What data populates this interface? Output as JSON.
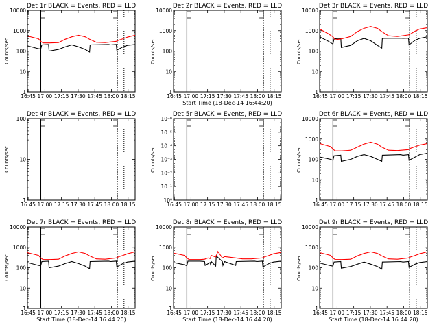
{
  "common": {
    "xlabel": "Start Time (18-Dec-14 16:44:20)",
    "ylabel": "Counts/sec",
    "x_ticks": [
      "16:45",
      "17:00",
      "17:15",
      "17:30",
      "17:45",
      "18:00",
      "18:15"
    ],
    "x_tick_minutes": [
      0.67,
      15.67,
      30.67,
      45.67,
      60.67,
      75.67,
      90.67
    ],
    "xlim_minutes": [
      0,
      97
    ],
    "series_colors": {
      "events": "#000000",
      "lld": "#ff0000"
    },
    "vertical_markers": {
      "solid": [
        12
      ],
      "dashed": [
        81
      ],
      "dotted": [
        87
      ]
    }
  },
  "chart_data": [
    {
      "type": "line",
      "title": "Det 1r BLACK = Events, RED = LLD",
      "ylim": [
        1,
        10000
      ],
      "yscale": "log",
      "yticks": [
        1,
        10,
        100,
        1000,
        10000
      ],
      "yticklabels": [
        "1",
        "10",
        "100",
        "1000",
        "10000"
      ],
      "has_data": true,
      "show_xlabel": false,
      "series": [
        {
          "key": "events",
          "x": [
            0,
            10,
            12,
            13,
            19,
            19.5,
            28,
            34,
            40,
            46,
            52,
            56,
            56.5,
            73,
            75,
            80,
            80.5,
            86,
            90,
            97
          ],
          "y": [
            180,
            130,
            125,
            200,
            210,
            100,
            120,
            160,
            200,
            160,
            120,
            90,
            200,
            210,
            200,
            210,
            110,
            160,
            190,
            210
          ]
        },
        {
          "key": "lld",
          "x": [
            0,
            10,
            12,
            14,
            20,
            28,
            34,
            40,
            46,
            52,
            56,
            62,
            70,
            80,
            82,
            86,
            90,
            97
          ],
          "y": [
            550,
            400,
            300,
            250,
            250,
            260,
            380,
            500,
            600,
            500,
            380,
            270,
            260,
            300,
            340,
            400,
            480,
            600
          ]
        }
      ]
    },
    {
      "type": "line",
      "title": "Det 2r BLACK = Events, RED = LLD",
      "ylim": [
        1,
        10000
      ],
      "yscale": "log",
      "yticks": [
        1,
        10,
        100,
        1000,
        10000
      ],
      "yticklabels": [
        "1",
        "10",
        "100",
        "1000",
        "10000"
      ],
      "has_data": false,
      "show_xlabel": true,
      "series": []
    },
    {
      "type": "line",
      "title": "Det 3r BLACK = Events, RED = LLD",
      "ylim": [
        1,
        10000
      ],
      "yscale": "log",
      "yticks": [
        1,
        10,
        100,
        1000,
        10000
      ],
      "yticklabels": [
        "1",
        "10",
        "100",
        "1000",
        "10000"
      ],
      "has_data": true,
      "show_xlabel": false,
      "series": [
        {
          "key": "events",
          "x": [
            0,
            8,
            12,
            13,
            19,
            19.5,
            28,
            34,
            40,
            46,
            52,
            56,
            56.5,
            73,
            75,
            80,
            80.5,
            86,
            90,
            97
          ],
          "y": [
            500,
            300,
            220,
            400,
            420,
            150,
            190,
            320,
            420,
            320,
            190,
            140,
            420,
            430,
            420,
            430,
            200,
            340,
            420,
            500
          ]
        },
        {
          "key": "lld",
          "x": [
            0,
            8,
            12,
            14,
            20,
            28,
            34,
            40,
            46,
            52,
            56,
            62,
            70,
            80,
            82,
            86,
            90,
            97
          ],
          "y": [
            1200,
            700,
            500,
            360,
            400,
            520,
            900,
            1300,
            1600,
            1300,
            900,
            560,
            520,
            620,
            700,
            950,
            1200,
            1400
          ]
        }
      ]
    },
    {
      "type": "line",
      "title": "Det 4r BLACK = Events, RED = LLD",
      "ylim": [
        1,
        100
      ],
      "yscale": "log",
      "yticks": [
        1,
        10,
        100
      ],
      "yticklabels": [
        "1",
        "10",
        "100"
      ],
      "has_data": false,
      "show_xlabel": false,
      "series": []
    },
    {
      "type": "line",
      "title": "Det 5r BLACK = Events, RED = LLD",
      "ylim": [
        1,
        1e-06
      ],
      "yscale": "log",
      "yticks": [
        1,
        0.1,
        0.01,
        0.001,
        0.0001,
        1e-05,
        1e-06
      ],
      "yticklabels": [
        "10⁰",
        "10⁻¹",
        "10⁻²",
        "10⁻³",
        "10⁻⁴",
        "10⁻⁵",
        "10⁻⁶"
      ],
      "has_data": false,
      "show_xlabel": false,
      "series": []
    },
    {
      "type": "line",
      "title": "Det 6r BLACK = Events, RED = LLD",
      "ylim": [
        1,
        10000
      ],
      "yscale": "log",
      "yticks": [
        1,
        10,
        100,
        1000,
        10000
      ],
      "yticklabels": [
        "1",
        "10",
        "100",
        "1000",
        "10000"
      ],
      "has_data": true,
      "show_xlabel": false,
      "series": [
        {
          "key": "events",
          "x": [
            0,
            10,
            12,
            13,
            19,
            19.5,
            28,
            34,
            40,
            46,
            52,
            56,
            56.5,
            73,
            75,
            80,
            80.5,
            86,
            90,
            97
          ],
          "y": [
            130,
            100,
            90,
            150,
            160,
            80,
            100,
            140,
            170,
            140,
            100,
            80,
            160,
            170,
            160,
            170,
            90,
            130,
            170,
            200
          ]
        },
        {
          "key": "lld",
          "x": [
            0,
            10,
            12,
            14,
            20,
            28,
            34,
            40,
            46,
            52,
            56,
            62,
            70,
            80,
            82,
            86,
            90,
            97
          ],
          "y": [
            600,
            420,
            320,
            260,
            260,
            280,
            400,
            560,
            700,
            560,
            400,
            280,
            270,
            300,
            350,
            420,
            500,
            600
          ]
        }
      ]
    },
    {
      "type": "line",
      "title": "Det 7r BLACK = Events, RED = LLD",
      "ylim": [
        1,
        10000
      ],
      "yscale": "log",
      "yticks": [
        1,
        10,
        100,
        1000,
        10000
      ],
      "yticklabels": [
        "1",
        "10",
        "100",
        "1000",
        "10000"
      ],
      "has_data": true,
      "show_xlabel": true,
      "series": [
        {
          "key": "events",
          "x": [
            0,
            10,
            12,
            13,
            19,
            19.5,
            28,
            34,
            40,
            46,
            52,
            56,
            56.5,
            73,
            75,
            80,
            80.5,
            86,
            90,
            97
          ],
          "y": [
            180,
            130,
            125,
            200,
            210,
            100,
            120,
            160,
            200,
            160,
            120,
            90,
            200,
            210,
            200,
            210,
            110,
            160,
            190,
            210
          ]
        },
        {
          "key": "lld",
          "x": [
            0,
            10,
            12,
            14,
            20,
            28,
            34,
            40,
            46,
            52,
            56,
            62,
            70,
            80,
            82,
            86,
            90,
            97
          ],
          "y": [
            550,
            400,
            300,
            250,
            250,
            260,
            380,
            500,
            600,
            500,
            380,
            270,
            260,
            300,
            340,
            400,
            480,
            600
          ]
        }
      ]
    },
    {
      "type": "line",
      "title": "Det 8r BLACK = Events, RED = LLD",
      "ylim": [
        1,
        10000
      ],
      "yscale": "log",
      "yticks": [
        1,
        10,
        100,
        1000,
        10000
      ],
      "yticklabels": [
        "1",
        "10",
        "100",
        "1000",
        "10000"
      ],
      "has_data": true,
      "show_xlabel": true,
      "series": [
        {
          "key": "events",
          "x": [
            0,
            10,
            12,
            13,
            24,
            28,
            28.5,
            33,
            33.5,
            34,
            38,
            38.5,
            44,
            44.5,
            46,
            56,
            56.5,
            73,
            75,
            80,
            80.5,
            86,
            90,
            97
          ],
          "y": [
            180,
            140,
            125,
            210,
            210,
            200,
            130,
            180,
            130,
            200,
            120,
            380,
            200,
            130,
            200,
            130,
            200,
            210,
            200,
            210,
            110,
            160,
            190,
            210
          ]
        },
        {
          "key": "lld",
          "x": [
            0,
            10,
            12,
            14,
            24,
            28,
            31,
            33,
            34,
            38,
            40,
            44,
            46,
            56,
            62,
            70,
            80,
            82,
            86,
            90,
            97
          ],
          "y": [
            520,
            400,
            300,
            250,
            250,
            260,
            300,
            280,
            400,
            330,
            620,
            300,
            350,
            300,
            270,
            270,
            300,
            340,
            400,
            480,
            560
          ]
        }
      ]
    },
    {
      "type": "line",
      "title": "Det 9r BLACK = Events, RED = LLD",
      "ylim": [
        1,
        10000
      ],
      "yscale": "log",
      "yticks": [
        1,
        10,
        100,
        1000,
        10000
      ],
      "yticklabels": [
        "1",
        "10",
        "100",
        "1000",
        "10000"
      ],
      "has_data": true,
      "show_xlabel": true,
      "series": [
        {
          "key": "events",
          "x": [
            0,
            10,
            12,
            13,
            19,
            19.5,
            28,
            34,
            40,
            46,
            52,
            56,
            56.5,
            73,
            75,
            80,
            80.5,
            86,
            90,
            97
          ],
          "y": [
            170,
            125,
            120,
            190,
            200,
            95,
            115,
            150,
            190,
            150,
            115,
            85,
            190,
            200,
            190,
            200,
            105,
            150,
            180,
            200
          ]
        },
        {
          "key": "lld",
          "x": [
            0,
            10,
            12,
            14,
            20,
            28,
            34,
            40,
            46,
            52,
            56,
            62,
            70,
            80,
            82,
            86,
            90,
            97
          ],
          "y": [
            550,
            400,
            300,
            250,
            250,
            260,
            380,
            500,
            600,
            500,
            380,
            270,
            260,
            300,
            340,
            400,
            480,
            600
          ]
        }
      ]
    }
  ]
}
